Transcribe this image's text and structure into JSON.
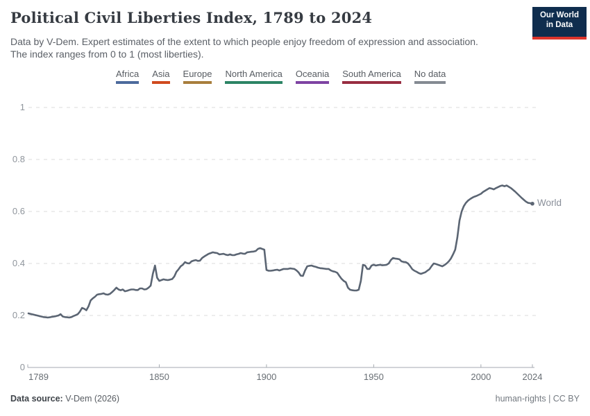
{
  "header": {
    "title": "Political Civil Liberties Index, 1789 to 2024",
    "logo": {
      "line1": "Our World",
      "line2": "in Data"
    }
  },
  "subtitle": {
    "line1": "Data by V-Dem. Expert estimates of the extent to which people enjoy freedom of expression and association.",
    "line2": "The index ranges from 0 to 1 (most liberties)."
  },
  "legend": {
    "items": [
      {
        "label": "Africa",
        "color": "#4c6a9c"
      },
      {
        "label": "Asia",
        "color": "#d04a1e"
      },
      {
        "label": "Europe",
        "color": "#a87e3c"
      },
      {
        "label": "North America",
        "color": "#2c8465"
      },
      {
        "label": "Oceania",
        "color": "#7e43a2"
      },
      {
        "label": "South America",
        "color": "#982d41"
      },
      {
        "label": "No data",
        "color": "#848a92"
      }
    ]
  },
  "chart_data": {
    "type": "line",
    "title": "Political Civil Liberties Index, 1789 to 2024",
    "xlabel": "",
    "ylabel": "",
    "xlim": [
      1789,
      2024
    ],
    "ylim": [
      0,
      1
    ],
    "xticks": [
      1789,
      1850,
      1900,
      1950,
      2000,
      2024
    ],
    "yticks": [
      0,
      0.2,
      0.4,
      0.6,
      0.8,
      1
    ],
    "grid": "horizontal-dashed",
    "line_color": "#5b6573",
    "series": [
      {
        "name": "World",
        "start_year": 1789,
        "end_year": 2024,
        "values": [
          0.208,
          0.206,
          0.204,
          0.202,
          0.2,
          0.198,
          0.196,
          0.194,
          0.193,
          0.192,
          0.193,
          0.195,
          0.196,
          0.198,
          0.2,
          0.205,
          0.196,
          0.194,
          0.193,
          0.192,
          0.194,
          0.198,
          0.201,
          0.205,
          0.215,
          0.229,
          0.226,
          0.22,
          0.235,
          0.258,
          0.266,
          0.272,
          0.28,
          0.282,
          0.283,
          0.285,
          0.281,
          0.28,
          0.283,
          0.29,
          0.298,
          0.307,
          0.3,
          0.297,
          0.3,
          0.293,
          0.295,
          0.298,
          0.3,
          0.3,
          0.298,
          0.298,
          0.304,
          0.304,
          0.3,
          0.301,
          0.307,
          0.315,
          0.36,
          0.392,
          0.345,
          0.333,
          0.336,
          0.339,
          0.337,
          0.336,
          0.338,
          0.34,
          0.35,
          0.368,
          0.378,
          0.389,
          0.395,
          0.405,
          0.401,
          0.4,
          0.408,
          0.411,
          0.413,
          0.41,
          0.411,
          0.421,
          0.427,
          0.432,
          0.437,
          0.44,
          0.443,
          0.441,
          0.44,
          0.435,
          0.436,
          0.437,
          0.434,
          0.432,
          0.435,
          0.432,
          0.432,
          0.435,
          0.437,
          0.44,
          0.438,
          0.437,
          0.443,
          0.444,
          0.445,
          0.446,
          0.448,
          0.456,
          0.459,
          0.456,
          0.453,
          0.375,
          0.372,
          0.372,
          0.373,
          0.375,
          0.376,
          0.373,
          0.376,
          0.379,
          0.379,
          0.379,
          0.381,
          0.38,
          0.379,
          0.373,
          0.365,
          0.353,
          0.352,
          0.373,
          0.389,
          0.391,
          0.392,
          0.389,
          0.387,
          0.384,
          0.382,
          0.381,
          0.38,
          0.379,
          0.379,
          0.373,
          0.37,
          0.368,
          0.364,
          0.352,
          0.341,
          0.333,
          0.328,
          0.307,
          0.299,
          0.297,
          0.296,
          0.296,
          0.299,
          0.333,
          0.395,
          0.392,
          0.379,
          0.379,
          0.392,
          0.395,
          0.392,
          0.394,
          0.395,
          0.393,
          0.394,
          0.395,
          0.4,
          0.413,
          0.421,
          0.419,
          0.418,
          0.416,
          0.408,
          0.406,
          0.405,
          0.4,
          0.39,
          0.378,
          0.372,
          0.368,
          0.363,
          0.36,
          0.363,
          0.366,
          0.372,
          0.378,
          0.39,
          0.4,
          0.398,
          0.395,
          0.392,
          0.389,
          0.394,
          0.4,
          0.408,
          0.419,
          0.435,
          0.453,
          0.5,
          0.565,
          0.6,
          0.62,
          0.633,
          0.642,
          0.648,
          0.653,
          0.657,
          0.66,
          0.664,
          0.668,
          0.675,
          0.68,
          0.685,
          0.69,
          0.688,
          0.685,
          0.69,
          0.694,
          0.698,
          0.7,
          0.697,
          0.7,
          0.695,
          0.69,
          0.683,
          0.676,
          0.668,
          0.66,
          0.652,
          0.645,
          0.638,
          0.633,
          0.632,
          0.63
        ]
      }
    ]
  },
  "footer": {
    "source_label": "Data source:",
    "source_value": " V-Dem (2026)",
    "license": "human-rights | CC BY"
  }
}
